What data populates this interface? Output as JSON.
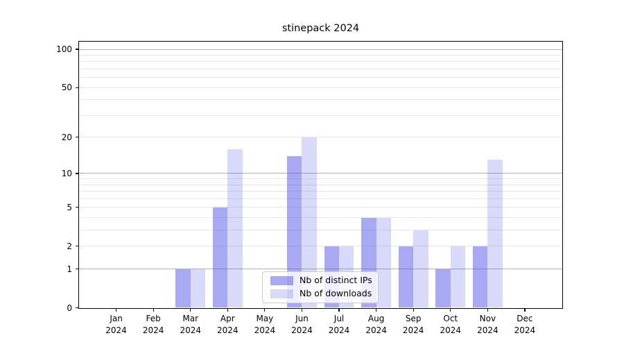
{
  "chart_data": {
    "type": "bar",
    "title": "stinepack 2024",
    "categories": [
      "Jan 2024",
      "Feb 2024",
      "Mar 2024",
      "Apr 2024",
      "May 2024",
      "Jun 2024",
      "Jul 2024",
      "Aug 2024",
      "Sep 2024",
      "Oct 2024",
      "Nov 2024",
      "Dec 2024"
    ],
    "series": [
      {
        "name": "Nb of distinct IPs",
        "color": "rgba(80,80,230,0.49)",
        "values": [
          0,
          0,
          1,
          5,
          0,
          14,
          2,
          4,
          2,
          1,
          2,
          0
        ]
      },
      {
        "name": "Nb of downloads",
        "color": "rgba(80,80,230,0.22)",
        "values": [
          0,
          0,
          1,
          16,
          0,
          20,
          2,
          4,
          3,
          2,
          13,
          0
        ]
      }
    ],
    "xlabel": "",
    "ylabel": "",
    "yaxis": {
      "scale": "log1p",
      "tick_values": [
        100,
        50,
        20,
        10,
        5,
        2,
        1,
        0
      ],
      "tick_labels": [
        "100",
        "50",
        "20",
        "10",
        "5",
        "2",
        "1",
        "0"
      ],
      "major_gridline_values": [
        1,
        10,
        100
      ],
      "minor_gridline_values": [
        2,
        3,
        4,
        5,
        6,
        7,
        8,
        9,
        20,
        30,
        40,
        50,
        60,
        70,
        80,
        90
      ],
      "ylim": [
        0,
        115
      ]
    },
    "grid": true,
    "legend_position": "lower center"
  },
  "colors": {
    "bar_distinct_ips": "rgba(80,80,230,0.49)",
    "bar_downloads": "rgba(80,80,230,0.22)",
    "major_grid": "#b0b0b0",
    "minor_grid": "#e7e7e7",
    "frame": "#000000",
    "text": "#000000",
    "legend_border": "#cccccc",
    "legend_bg": "rgba(255,255,255,0.8)"
  }
}
